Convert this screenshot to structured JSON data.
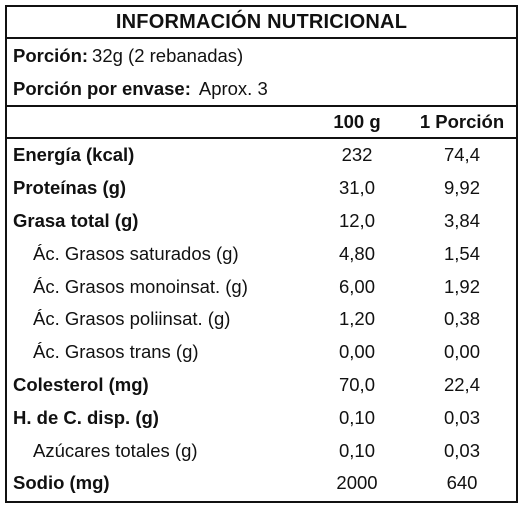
{
  "title": "INFORMACIÓN NUTRICIONAL",
  "serving": {
    "portion_label": "Porción:",
    "portion_value": "32g (2 rebanadas)",
    "per_container_label": "Porción por envase:",
    "per_container_value": "Aprox. 3"
  },
  "columns": {
    "per100": "100 g",
    "perPortion": "1 Porción"
  },
  "rows": [
    {
      "label": "Energía (kcal)",
      "per100": "232",
      "perPortion": "74,4"
    },
    {
      "label": "Proteínas (g)",
      "per100": "31,0",
      "perPortion": "9,92"
    },
    {
      "label": "Grasa total (g)",
      "per100": "12,0",
      "perPortion": "3,84"
    },
    {
      "label": "Ác. Grasos saturados (g)",
      "per100": "4,80",
      "perPortion": "1,54"
    },
    {
      "label": "Ác. Grasos monoinsat. (g)",
      "per100": "6,00",
      "perPortion": "1,92"
    },
    {
      "label": "Ác. Grasos poliinsat. (g)",
      "per100": "1,20",
      "perPortion": "0,38"
    },
    {
      "label": "Ác. Grasos trans (g)",
      "per100": "0,00",
      "perPortion": "0,00"
    },
    {
      "label": "Colesterol (mg)",
      "per100": "70,0",
      "perPortion": "22,4"
    },
    {
      "label": "H. de C. disp. (g)",
      "per100": "0,10",
      "perPortion": "0,03"
    },
    {
      "label": "Azúcares totales (g)",
      "per100": "0,10",
      "perPortion": "0,03"
    },
    {
      "label": "Sodio (mg)",
      "per100": "2000",
      "perPortion": "640"
    }
  ]
}
